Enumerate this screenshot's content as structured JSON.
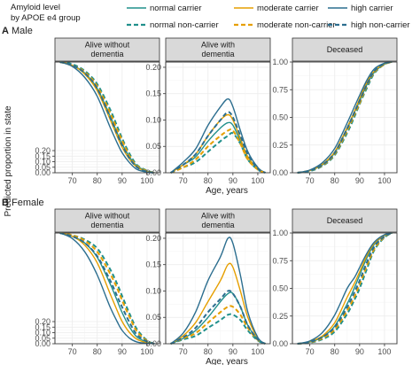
{
  "legend": {
    "title_lines": [
      "Amyloid level",
      "by APOE e4 group"
    ],
    "items": [
      {
        "label": "normal carrier",
        "color": "#21908C",
        "dash": "solid"
      },
      {
        "label": "moderate carrier",
        "color": "#E69F00",
        "dash": "solid"
      },
      {
        "label": "high carrier",
        "color": "#2C6E8F",
        "dash": "solid"
      },
      {
        "label": "normal non-carrier",
        "color": "#21908C",
        "dash": "dashed"
      },
      {
        "label": "moderate non-carrier",
        "color": "#E69F00",
        "dash": "dashed"
      },
      {
        "label": "high non-carrier",
        "color": "#2C6E8F",
        "dash": "dashed"
      }
    ]
  },
  "rows": [
    {
      "tag": "A",
      "title": "Male"
    },
    {
      "tag": "B",
      "title": "Female"
    }
  ],
  "facets": [
    {
      "strip": [
        "Alive without",
        "dementia"
      ]
    },
    {
      "strip": [
        "Alive with",
        "dementia"
      ]
    },
    {
      "strip": [
        "Deceased"
      ]
    }
  ],
  "xlabel": "Age, years",
  "ylabel": "Predicted proportion in state",
  "chart_data": {
    "type": "line",
    "xlim": [
      63,
      105
    ],
    "x_ticks": [
      70,
      80,
      90,
      100
    ],
    "x": [
      65,
      70,
      75,
      80,
      85,
      88,
      90,
      93,
      96,
      100,
      103
    ],
    "ylims": {
      "without": [
        0,
        1
      ],
      "with_male": [
        0,
        0.21
      ],
      "with_female": [
        0,
        0.21
      ],
      "deceased": [
        0,
        1
      ]
    },
    "y_ticks": {
      "without": [
        "0.00",
        "0.25",
        "0.50",
        "0.75",
        "1.00"
      ],
      "with": [
        "0.00",
        "0.05",
        "0.10",
        "0.15",
        "0.20"
      ],
      "deceased": [
        "0.00",
        "0.25",
        "0.50",
        "0.75",
        "1.00"
      ]
    },
    "panels": [
      {
        "row": "Male",
        "facet": "Alive without dementia",
        "ylim_key": "without",
        "series": [
          {
            "name": "normal carrier",
            "values": [
              1.0,
              0.97,
              0.9,
              0.76,
              0.52,
              0.36,
              0.26,
              0.14,
              0.06,
              0.015,
              0.0
            ]
          },
          {
            "name": "moderate carrier",
            "values": [
              1.0,
              0.97,
              0.89,
              0.74,
              0.49,
              0.33,
              0.23,
              0.12,
              0.05,
              0.01,
              0.0
            ]
          },
          {
            "name": "high carrier",
            "values": [
              1.0,
              0.96,
              0.86,
              0.69,
              0.42,
              0.27,
              0.18,
              0.09,
              0.03,
              0.005,
              0.0
            ]
          },
          {
            "name": "normal non-carrier",
            "values": [
              1.0,
              0.98,
              0.92,
              0.8,
              0.58,
              0.42,
              0.31,
              0.17,
              0.07,
              0.02,
              0.0
            ]
          },
          {
            "name": "moderate non-carrier",
            "values": [
              1.0,
              0.97,
              0.91,
              0.78,
              0.55,
              0.39,
              0.29,
              0.15,
              0.06,
              0.015,
              0.0
            ]
          },
          {
            "name": "high non-carrier",
            "values": [
              1.0,
              0.97,
              0.9,
              0.76,
              0.51,
              0.35,
              0.25,
              0.13,
              0.05,
              0.01,
              0.0
            ]
          }
        ]
      },
      {
        "row": "Male",
        "facet": "Alive with dementia",
        "ylim_key": "with_male",
        "series": [
          {
            "name": "normal carrier",
            "values": [
              0.0,
              0.015,
              0.03,
              0.06,
              0.085,
              0.095,
              0.09,
              0.06,
              0.03,
              0.008,
              0.0
            ]
          },
          {
            "name": "moderate carrier",
            "values": [
              0.0,
              0.015,
              0.035,
              0.07,
              0.1,
              0.11,
              0.1,
              0.065,
              0.03,
              0.008,
              0.0
            ]
          },
          {
            "name": "high carrier",
            "values": [
              0.0,
              0.02,
              0.045,
              0.09,
              0.125,
              0.14,
              0.125,
              0.08,
              0.04,
              0.01,
              0.0
            ]
          },
          {
            "name": "normal non-carrier",
            "values": [
              0.0,
              0.01,
              0.02,
              0.04,
              0.06,
              0.07,
              0.075,
              0.055,
              0.025,
              0.006,
              0.0
            ]
          },
          {
            "name": "moderate non-carrier",
            "values": [
              0.0,
              0.01,
              0.025,
              0.05,
              0.07,
              0.08,
              0.08,
              0.055,
              0.025,
              0.006,
              0.0
            ]
          },
          {
            "name": "high non-carrier",
            "values": [
              0.0,
              0.015,
              0.035,
              0.07,
              0.1,
              0.115,
              0.105,
              0.07,
              0.035,
              0.008,
              0.0
            ]
          }
        ]
      },
      {
        "row": "Male",
        "facet": "Deceased",
        "ylim_key": "deceased",
        "series": [
          {
            "name": "normal carrier",
            "values": [
              0.0,
              0.02,
              0.07,
              0.18,
              0.4,
              0.55,
              0.65,
              0.8,
              0.91,
              0.98,
              1.0
            ]
          },
          {
            "name": "moderate carrier",
            "values": [
              0.0,
              0.02,
              0.075,
              0.19,
              0.41,
              0.56,
              0.67,
              0.82,
              0.92,
              0.985,
              1.0
            ]
          },
          {
            "name": "high carrier",
            "values": [
              0.0,
              0.025,
              0.09,
              0.22,
              0.45,
              0.6,
              0.7,
              0.84,
              0.94,
              0.99,
              1.0
            ]
          },
          {
            "name": "normal non-carrier",
            "values": [
              0.0,
              0.015,
              0.06,
              0.16,
              0.36,
              0.51,
              0.62,
              0.77,
              0.9,
              0.98,
              1.0
            ]
          },
          {
            "name": "moderate non-carrier",
            "values": [
              0.0,
              0.02,
              0.065,
              0.17,
              0.38,
              0.53,
              0.63,
              0.79,
              0.91,
              0.98,
              1.0
            ]
          },
          {
            "name": "high non-carrier",
            "values": [
              0.0,
              0.02,
              0.07,
              0.18,
              0.4,
              0.55,
              0.65,
              0.8,
              0.92,
              0.985,
              1.0
            ]
          }
        ]
      },
      {
        "row": "Female",
        "facet": "Alive without dementia",
        "ylim_key": "without",
        "series": [
          {
            "name": "normal carrier",
            "values": [
              1.0,
              0.97,
              0.91,
              0.78,
              0.55,
              0.39,
              0.28,
              0.15,
              0.06,
              0.015,
              0.0
            ]
          },
          {
            "name": "moderate carrier",
            "values": [
              1.0,
              0.97,
              0.89,
              0.73,
              0.46,
              0.3,
              0.2,
              0.1,
              0.04,
              0.008,
              0.0
            ]
          },
          {
            "name": "high carrier",
            "values": [
              1.0,
              0.95,
              0.83,
              0.62,
              0.34,
              0.2,
              0.12,
              0.05,
              0.015,
              0.003,
              0.0
            ]
          },
          {
            "name": "normal non-carrier",
            "values": [
              1.0,
              0.98,
              0.94,
              0.86,
              0.68,
              0.54,
              0.43,
              0.27,
              0.13,
              0.03,
              0.0
            ]
          },
          {
            "name": "moderate non-carrier",
            "values": [
              1.0,
              0.98,
              0.93,
              0.83,
              0.64,
              0.5,
              0.39,
              0.24,
              0.11,
              0.025,
              0.0
            ]
          },
          {
            "name": "high non-carrier",
            "values": [
              1.0,
              0.97,
              0.91,
              0.79,
              0.58,
              0.43,
              0.33,
              0.19,
              0.08,
              0.02,
              0.0
            ]
          }
        ]
      },
      {
        "row": "Female",
        "facet": "Alive with dementia",
        "ylim_key": "with_female",
        "series": [
          {
            "name": "normal carrier",
            "values": [
              0.0,
              0.01,
              0.025,
              0.05,
              0.08,
              0.095,
              0.095,
              0.07,
              0.035,
              0.008,
              0.0
            ]
          },
          {
            "name": "moderate carrier",
            "values": [
              0.0,
              0.015,
              0.04,
              0.08,
              0.12,
              0.15,
              0.145,
              0.1,
              0.05,
              0.01,
              0.0
            ]
          },
          {
            "name": "high carrier",
            "values": [
              0.0,
              0.02,
              0.06,
              0.12,
              0.165,
              0.2,
              0.19,
              0.13,
              0.06,
              0.012,
              0.0
            ]
          },
          {
            "name": "normal non-carrier",
            "values": [
              0.0,
              0.008,
              0.015,
              0.03,
              0.045,
              0.055,
              0.055,
              0.045,
              0.025,
              0.006,
              0.0
            ]
          },
          {
            "name": "moderate non-carrier",
            "values": [
              0.0,
              0.01,
              0.02,
              0.04,
              0.06,
              0.07,
              0.07,
              0.055,
              0.03,
              0.007,
              0.0
            ]
          },
          {
            "name": "high non-carrier",
            "values": [
              0.0,
              0.012,
              0.03,
              0.06,
              0.085,
              0.1,
              0.095,
              0.07,
              0.035,
              0.008,
              0.0
            ]
          }
        ]
      },
      {
        "row": "Female",
        "facet": "Deceased",
        "ylim_key": "deceased",
        "series": [
          {
            "name": "normal carrier",
            "values": [
              0.0,
              0.015,
              0.06,
              0.16,
              0.36,
              0.51,
              0.62,
              0.78,
              0.9,
              0.98,
              1.0
            ]
          },
          {
            "name": "moderate carrier",
            "values": [
              0.0,
              0.02,
              0.07,
              0.19,
              0.42,
              0.55,
              0.65,
              0.8,
              0.91,
              0.98,
              1.0
            ]
          },
          {
            "name": "high carrier",
            "values": [
              0.0,
              0.025,
              0.1,
              0.26,
              0.5,
              0.6,
              0.69,
              0.82,
              0.92,
              0.985,
              1.0
            ]
          },
          {
            "name": "normal non-carrier",
            "values": [
              0.0,
              0.01,
              0.04,
              0.11,
              0.27,
              0.4,
              0.5,
              0.68,
              0.85,
              0.96,
              1.0
            ]
          },
          {
            "name": "moderate non-carrier",
            "values": [
              0.0,
              0.012,
              0.05,
              0.13,
              0.3,
              0.43,
              0.54,
              0.71,
              0.86,
              0.965,
              1.0
            ]
          },
          {
            "name": "high non-carrier",
            "values": [
              0.0,
              0.015,
              0.06,
              0.15,
              0.33,
              0.47,
              0.57,
              0.74,
              0.88,
              0.97,
              1.0
            ]
          }
        ]
      }
    ]
  }
}
